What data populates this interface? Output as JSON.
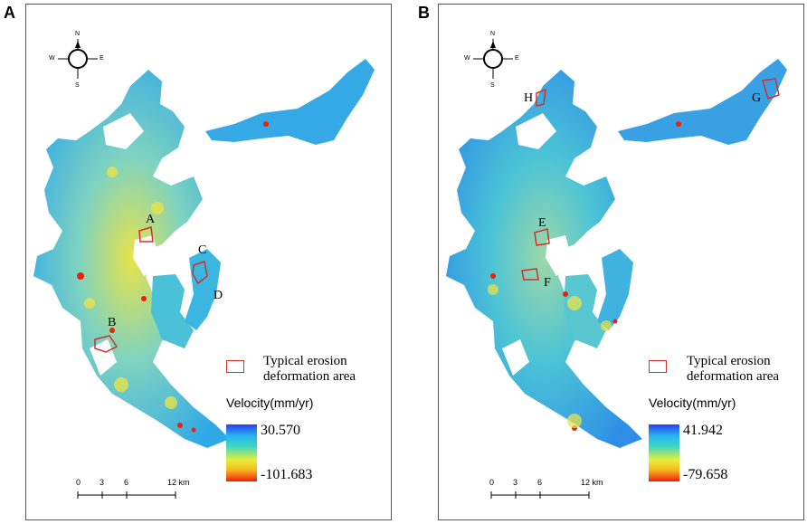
{
  "panels": [
    {
      "letter": "A",
      "areas": [
        "A",
        "B",
        "C",
        "D"
      ],
      "legend": {
        "line1": "Typical erosion",
        "line2": "deformation area"
      },
      "velocity": {
        "title": "Velocity(mm/yr)",
        "max": "30.570",
        "min": "-101.683"
      },
      "scale": {
        "t0": "0",
        "t1": "3",
        "t2": "6",
        "t3": "12 km"
      },
      "compass": {
        "n": "N",
        "s": "S",
        "e": "E",
        "w": "W"
      }
    },
    {
      "letter": "B",
      "areas": [
        "E",
        "F",
        "G",
        "H"
      ],
      "legend": {
        "line1": "Typical erosion",
        "line2": "deformation area"
      },
      "velocity": {
        "title": "Velocity(mm/yr)",
        "max": "41.942",
        "min": "-79.658"
      },
      "scale": {
        "t0": "0",
        "t1": "3",
        "t2": "6",
        "t3": "12 km"
      },
      "compass": {
        "n": "N",
        "s": "S",
        "e": "E",
        "w": "W"
      }
    }
  ],
  "colors": {
    "high": "#2b3ff0",
    "mid": "#3ad5c4",
    "low": "#f01e0a",
    "outline": "#d0312d"
  }
}
